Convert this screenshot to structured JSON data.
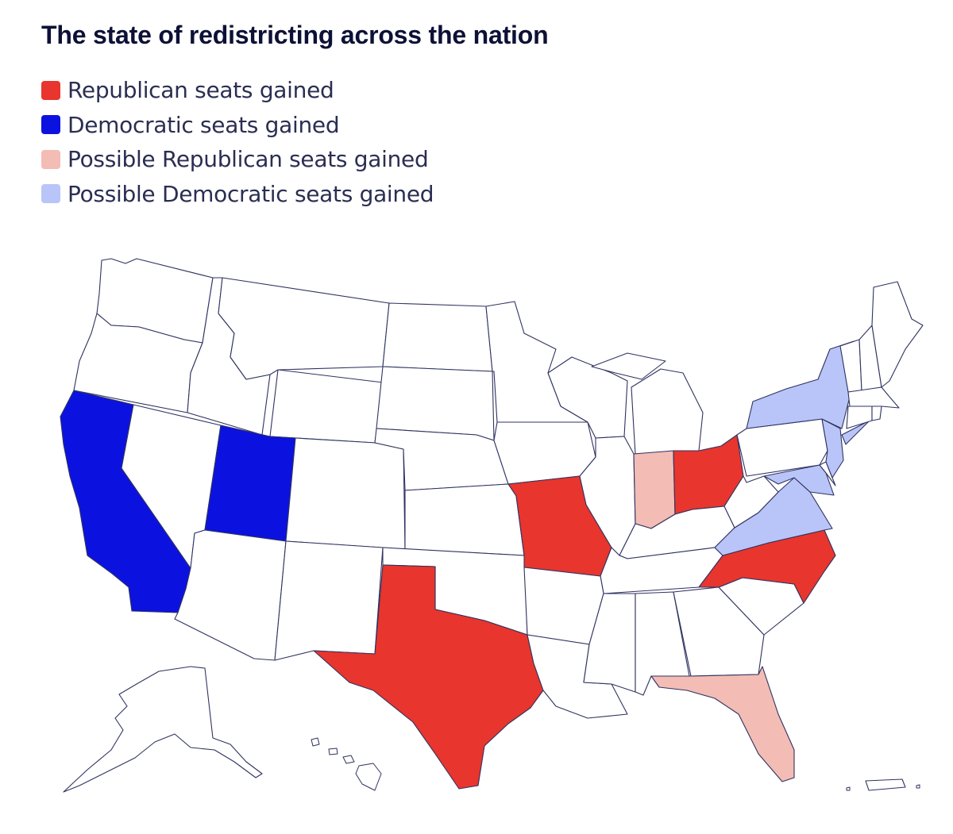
{
  "title": "The state of redistricting across the nation",
  "legend": [
    {
      "label": "Republican seats gained",
      "color": "#e8352e",
      "key": "rep"
    },
    {
      "label": "Democratic seats gained",
      "color": "#0b12e0",
      "key": "dem"
    },
    {
      "label": "Possible Republican seats gained",
      "color": "#f3bcb5",
      "key": "prep"
    },
    {
      "label": "Possible Democratic seats gained",
      "color": "#b9c5f8",
      "key": "pdem"
    }
  ],
  "colors": {
    "rep": "#e8352e",
    "dem": "#0b12e0",
    "prep": "#f3bcb5",
    "pdem": "#b9c5f8",
    "none": "#ffffff",
    "border": "#2f3360"
  },
  "states": {
    "Republican seats gained": [
      "Texas",
      "Missouri",
      "Ohio",
      "North Carolina"
    ],
    "Democratic seats gained": [
      "California",
      "Utah"
    ],
    "Possible Republican seats gained": [
      "Indiana",
      "Florida"
    ],
    "Possible Democratic seats gained": [
      "New York",
      "Virginia",
      "Maryland",
      "New Jersey"
    ]
  }
}
